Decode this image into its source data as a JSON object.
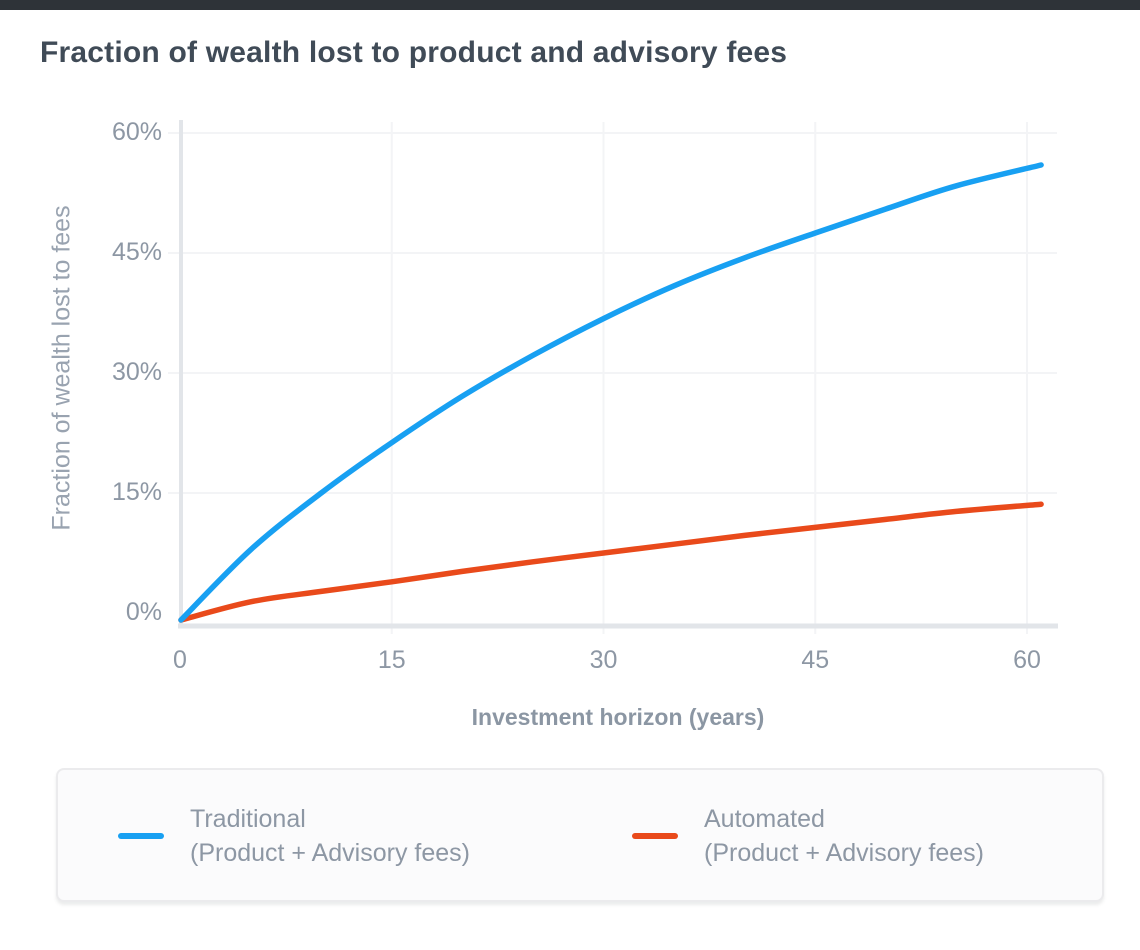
{
  "page": {
    "title": "Fraction of wealth lost to product and advisory fees"
  },
  "colors": {
    "topbar": "#2e3338",
    "page_title": "#404b57",
    "tick_label": "#8d97a4",
    "axis_line": "#e2e5e9",
    "gridline": "#f3f4f6",
    "traditional": "#18a0f2",
    "automated": "#e94a1b",
    "legend_background": "#fbfbfc",
    "legend_border": "#ebebed"
  },
  "chart_data": {
    "type": "line",
    "title": "Fraction of wealth lost to product and advisory fees",
    "xlabel": "Investment horizon (years)",
    "ylabel": "Fraction of wealth lost to fees",
    "xlim": [
      0,
      62
    ],
    "ylim": [
      0,
      60
    ],
    "grid": true,
    "legend_position": "bottom",
    "x_ticks": [
      {
        "value": 0,
        "label": "0"
      },
      {
        "value": 15,
        "label": "15"
      },
      {
        "value": 30,
        "label": "30"
      },
      {
        "value": 45,
        "label": "45"
      },
      {
        "value": 60,
        "label": "60"
      }
    ],
    "y_ticks": [
      {
        "value": 0,
        "label": "0%"
      },
      {
        "value": 15,
        "label": "15%"
      },
      {
        "value": 30,
        "label": "30%"
      },
      {
        "value": 45,
        "label": "45%"
      },
      {
        "value": 60,
        "label": "60%"
      }
    ],
    "series": [
      {
        "name": "Traditional",
        "sublabel": "(Product + Advisory fees)",
        "color": "#18a0f2",
        "x": [
          0,
          5,
          10,
          15,
          20,
          25,
          30,
          35,
          40,
          45,
          50,
          55,
          61
        ],
        "y": [
          0,
          7.9,
          15.0,
          21.3,
          27.1,
          32.2,
          36.8,
          40.9,
          44.4,
          47.5,
          50.5,
          53.4,
          56.0
        ]
      },
      {
        "name": "Automated",
        "sublabel": "(Product + Advisory fees)",
        "color": "#e94a1b",
        "x": [
          0,
          5,
          10,
          15,
          20,
          25,
          30,
          35,
          40,
          45,
          50,
          55,
          61
        ],
        "y": [
          0,
          1.4,
          2.7,
          3.9,
          5.2,
          6.4,
          7.5,
          8.6,
          9.7,
          10.7,
          11.7,
          12.7,
          13.6
        ]
      }
    ]
  }
}
